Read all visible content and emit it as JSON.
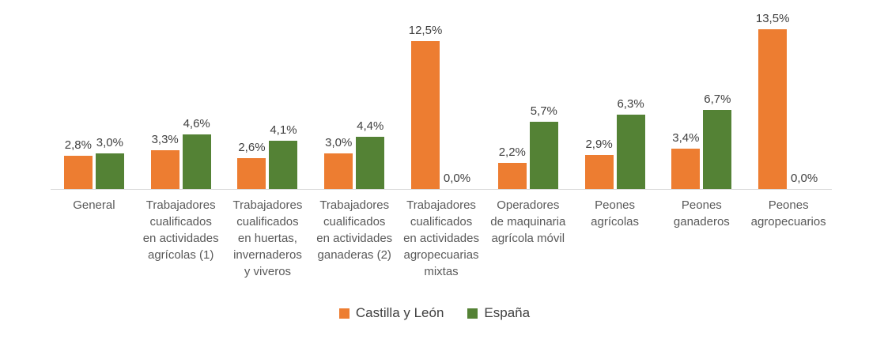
{
  "chart_data": {
    "type": "bar",
    "title": "",
    "xlabel": "",
    "ylabel": "",
    "ylim": [
      0,
      14
    ],
    "grid": false,
    "legend_position": "bottom",
    "decimal_separator": ",",
    "unit": "%",
    "categories": [
      "General",
      "Trabajadores cualificados en actividades agrícolas (1)",
      "Trabajadores cualificados en huertas, invernaderos y viveros",
      "Trabajadores cualificados en actividades ganaderas (2)",
      "Trabajadores cualificados en actividades agropecuarias mixtas",
      "Operadores de maquinaria agrícola móvil",
      "Peones agrícolas",
      "Peones ganaderos",
      "Peones agropecuarios"
    ],
    "category_lines": [
      [
        "General"
      ],
      [
        "Trabajadores",
        "cualificados",
        "en actividades",
        "agrícolas (1)"
      ],
      [
        "Trabajadores",
        "cualificados",
        "en huertas,",
        "invernaderos",
        "y viveros"
      ],
      [
        "Trabajadores",
        "cualificados",
        "en actividades",
        "ganaderas (2)"
      ],
      [
        "Trabajadores",
        "cualificados",
        "en actividades",
        "agropecuarias",
        "mixtas"
      ],
      [
        "Operadores",
        "de maquinaria",
        "agrícola móvil"
      ],
      [
        "Peones",
        "agrícolas"
      ],
      [
        "Peones",
        "ganaderos"
      ],
      [
        "Peones",
        "agropecuarios"
      ]
    ],
    "series": [
      {
        "name": "Castilla y León",
        "color": "#ED7D31",
        "values": [
          2.8,
          3.3,
          2.6,
          3.0,
          12.5,
          2.2,
          2.9,
          3.4,
          13.5
        ],
        "labels": [
          "2,8%",
          "3,3%",
          "2,6%",
          "3,0%",
          "12,5%",
          "2,2%",
          "2,9%",
          "3,4%",
          "13,5%"
        ]
      },
      {
        "name": "España",
        "color": "#548235",
        "values": [
          3.0,
          4.6,
          4.1,
          4.4,
          0.0,
          5.7,
          6.3,
          6.7,
          0.0
        ],
        "labels": [
          "3,0%",
          "4,6%",
          "4,1%",
          "4,4%",
          "0,0%",
          "5,7%",
          "6,3%",
          "6,7%",
          "0,0%"
        ]
      }
    ],
    "colors": {
      "axis_line": "#D9D9D9",
      "value_label": "#404040",
      "category_label": "#595959",
      "legend_label": "#404040"
    }
  }
}
